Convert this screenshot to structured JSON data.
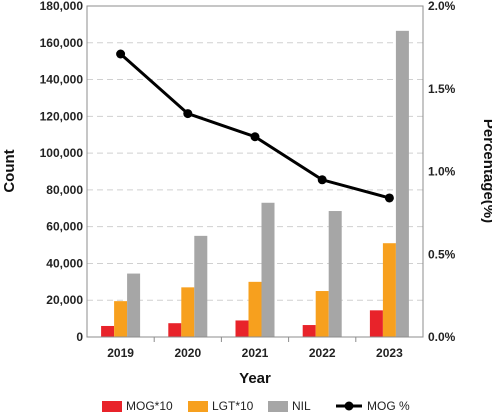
{
  "chart_data": {
    "type": "bar",
    "categories": [
      "2019",
      "2020",
      "2021",
      "2022",
      "2023"
    ],
    "xlabel": "Year",
    "ylabel": "Count",
    "ylabel_right": "Percentage(%)",
    "ylim": [
      0,
      180000
    ],
    "ylim_right": [
      0,
      2.0
    ],
    "y_ticks": [
      "0",
      "20,000",
      "40,000",
      "60,000",
      "80,000",
      "100,000",
      "120,000",
      "140,000",
      "160,000",
      "180,000"
    ],
    "y_right_ticks": [
      "0.0%",
      "0.5%",
      "1.0%",
      "1.5%",
      "2.0%"
    ],
    "grid": true,
    "legend_position": "bottom",
    "series": [
      {
        "name": "MOG*10",
        "type": "bar",
        "axis": "left",
        "color": "#e8232a",
        "values": [
          6000,
          7500,
          9000,
          6500,
          14500
        ]
      },
      {
        "name": "LGT*10",
        "type": "bar",
        "axis": "left",
        "color": "#f7a01e",
        "values": [
          19500,
          27000,
          30000,
          25000,
          51000
        ]
      },
      {
        "name": "NIL",
        "type": "bar",
        "axis": "left",
        "color": "#a6a6a6",
        "values": [
          34500,
          55000,
          73000,
          68500,
          166500
        ]
      },
      {
        "name": "MOG %",
        "type": "line",
        "axis": "right",
        "color": "#000000",
        "values": [
          1.71,
          1.35,
          1.21,
          0.95,
          0.84
        ]
      }
    ]
  }
}
